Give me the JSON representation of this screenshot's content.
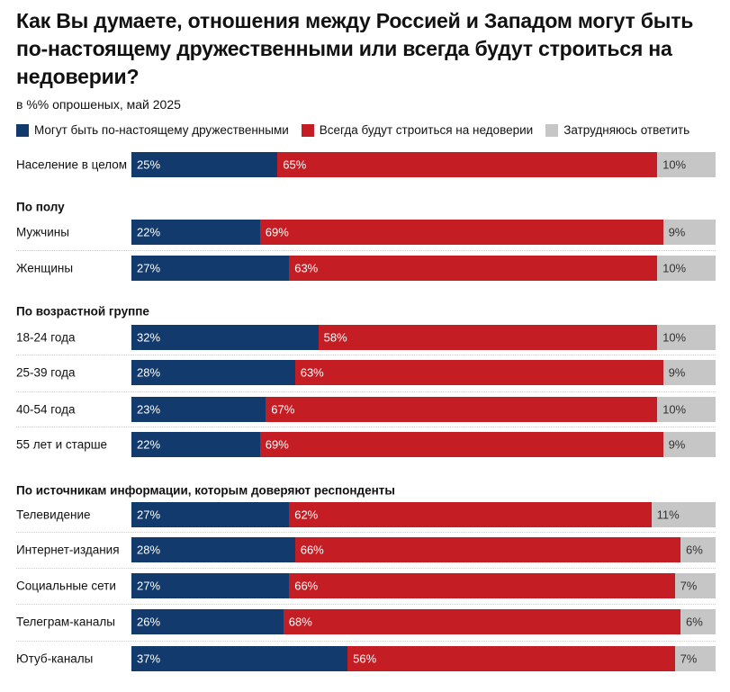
{
  "title": "Как Вы думаете, отношения между Россией и Западом могут быть по-настоящему дружественными или всегда будут строиться на недоверии?",
  "subtitle": "в %% опрошеных, май 2025",
  "chart_data": {
    "type": "bar",
    "orientation": "horizontal-stacked",
    "xlim": [
      0,
      100
    ],
    "legend_position": "top",
    "series": [
      {
        "name": "Могут быть по-настоящему дружественными",
        "color": "#123a6c"
      },
      {
        "name": "Всегда будут строиться на недоверии",
        "color": "#c41e24"
      },
      {
        "name": "Затрудняюсь ответить",
        "color": "#c6c6c6"
      }
    ],
    "groups": [
      {
        "heading": "",
        "rows": [
          {
            "label": "Население в целом",
            "values": [
              25,
              65,
              10
            ]
          }
        ]
      },
      {
        "heading": "По полу",
        "rows": [
          {
            "label": "Мужчины",
            "values": [
              22,
              69,
              9
            ]
          },
          {
            "label": "Женщины",
            "values": [
              27,
              63,
              10
            ]
          }
        ]
      },
      {
        "heading": "По возрастной группе",
        "rows": [
          {
            "label": "18-24 года",
            "values": [
              32,
              58,
              10
            ]
          },
          {
            "label": "25-39 года",
            "values": [
              28,
              63,
              9
            ]
          },
          {
            "label": "40-54 года",
            "values": [
              23,
              67,
              10
            ]
          },
          {
            "label": "55 лет и старше",
            "values": [
              22,
              69,
              9
            ]
          }
        ]
      },
      {
        "heading": "По источникам информации, которым доверяют респонденты",
        "rows": [
          {
            "label": "Телевидение",
            "values": [
              27,
              62,
              11
            ]
          },
          {
            "label": "Интернет-издания",
            "values": [
              28,
              66,
              6
            ]
          },
          {
            "label": "Социальные сети",
            "values": [
              27,
              66,
              7
            ]
          },
          {
            "label": "Телеграм-каналы",
            "values": [
              26,
              68,
              6
            ]
          },
          {
            "label": "Ютуб-каналы",
            "values": [
              37,
              56,
              7
            ]
          }
        ]
      }
    ]
  }
}
